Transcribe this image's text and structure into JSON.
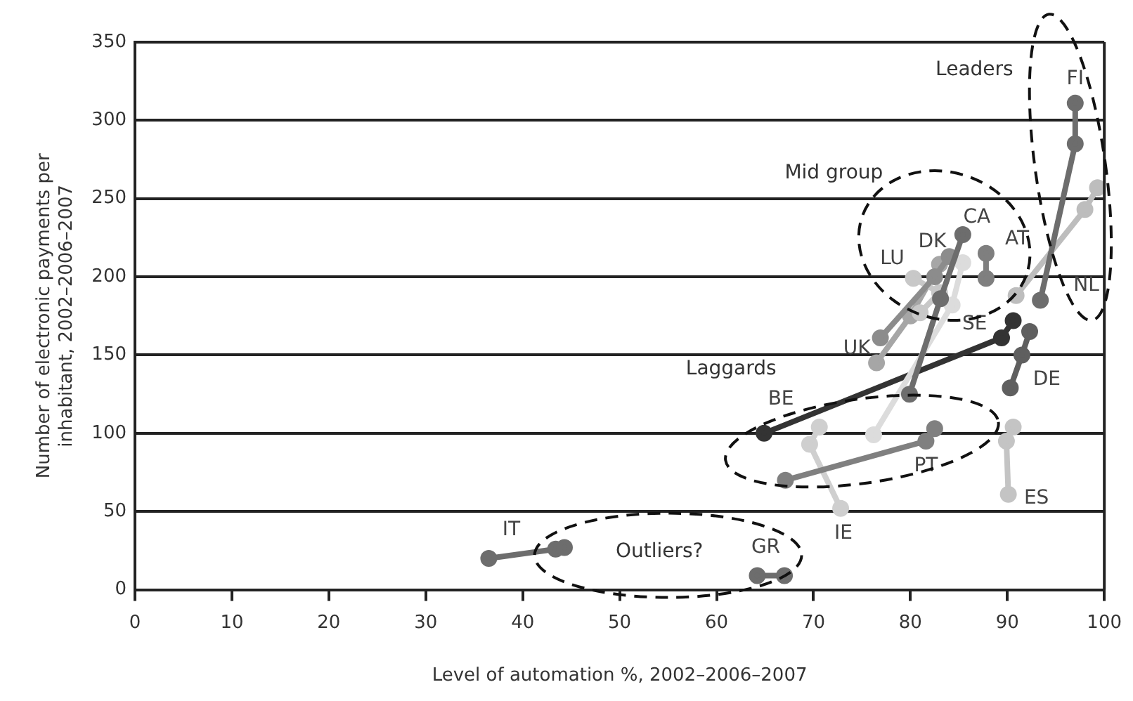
{
  "chart_data": {
    "type": "line",
    "xlabel": "Level of automation %, 2002–2006–2007",
    "ylabel": "Number of electronic payments per inhabitant, 2002–2006–2007",
    "xlim": [
      0,
      100
    ],
    "xticks": [
      0,
      10,
      20,
      30,
      40,
      50,
      60,
      70,
      80,
      90,
      100
    ],
    "ylim": [
      0,
      350
    ],
    "yticks": [
      0,
      50,
      100,
      150,
      200,
      250,
      300,
      350
    ],
    "grid": "y",
    "legend": false,
    "marker": "circle",
    "line_style": "solid",
    "annotations": [
      "Leaders",
      "Mid group",
      "Laggards",
      "Outliers?"
    ],
    "series": [
      {
        "name": "FI",
        "color": "#6d6d6d",
        "x": [
          93.4,
          97,
          97
        ],
        "values": [
          185,
          285,
          311
        ]
      },
      {
        "name": "NL",
        "color": "#bdbdbd",
        "x": [
          90.9,
          98,
          99.3
        ],
        "values": [
          188,
          243,
          257
        ]
      },
      {
        "name": "AT",
        "color": "#7f7f7f",
        "x": [
          87.8,
          87.8
        ],
        "values": [
          199,
          215
        ]
      },
      {
        "name": "CA",
        "color": "#6d6d6d",
        "x": [
          79.9,
          83.1,
          85.4
        ],
        "values": [
          125,
          186,
          227
        ]
      },
      {
        "name": "DK",
        "color": "#8c8c8c",
        "x": [
          76.9,
          82.5,
          84
        ],
        "values": [
          161,
          200,
          213
        ]
      },
      {
        "name": "LU",
        "color": "#c8c8c8",
        "x": [
          81,
          83,
          80.3
        ],
        "values": [
          177,
          190,
          199
        ]
      },
      {
        "name": "UK",
        "color": "#a6a6a6",
        "x": [
          76.5,
          80,
          83
        ],
        "values": [
          145,
          175,
          208
        ]
      },
      {
        "name": "SE",
        "color": "#dcdcdc",
        "x": [
          76.2,
          84.3,
          85.4
        ],
        "values": [
          99,
          182,
          209
        ]
      },
      {
        "name": "DE",
        "color": "#5f5f5f",
        "x": [
          90.3,
          91.5,
          92.3
        ],
        "values": [
          129,
          150,
          165
        ]
      },
      {
        "name": "BE",
        "color": "#333333",
        "x": [
          64.9,
          89.4,
          90.6
        ],
        "values": [
          100,
          161,
          172
        ]
      },
      {
        "name": "PT",
        "color": "#808080",
        "x": [
          67.1,
          81.6,
          82.5
        ],
        "values": [
          70,
          95,
          103
        ]
      },
      {
        "name": "IE",
        "color": "#cfcfcf",
        "x": [
          70.6,
          69.6,
          72.8
        ],
        "values": [
          104,
          93,
          52
        ]
      },
      {
        "name": "ES",
        "color": "#c4c4c4",
        "x": [
          90.6,
          89.9,
          90.1
        ],
        "values": [
          104,
          95,
          61
        ]
      },
      {
        "name": "IT",
        "color": "#6d6d6d",
        "x": [
          36.5,
          43.4,
          44.3
        ],
        "values": [
          20,
          26,
          27
        ]
      },
      {
        "name": "GR",
        "color": "#6d6d6d",
        "x": [
          64.2,
          67
        ],
        "values": [
          9,
          9
        ]
      }
    ]
  }
}
